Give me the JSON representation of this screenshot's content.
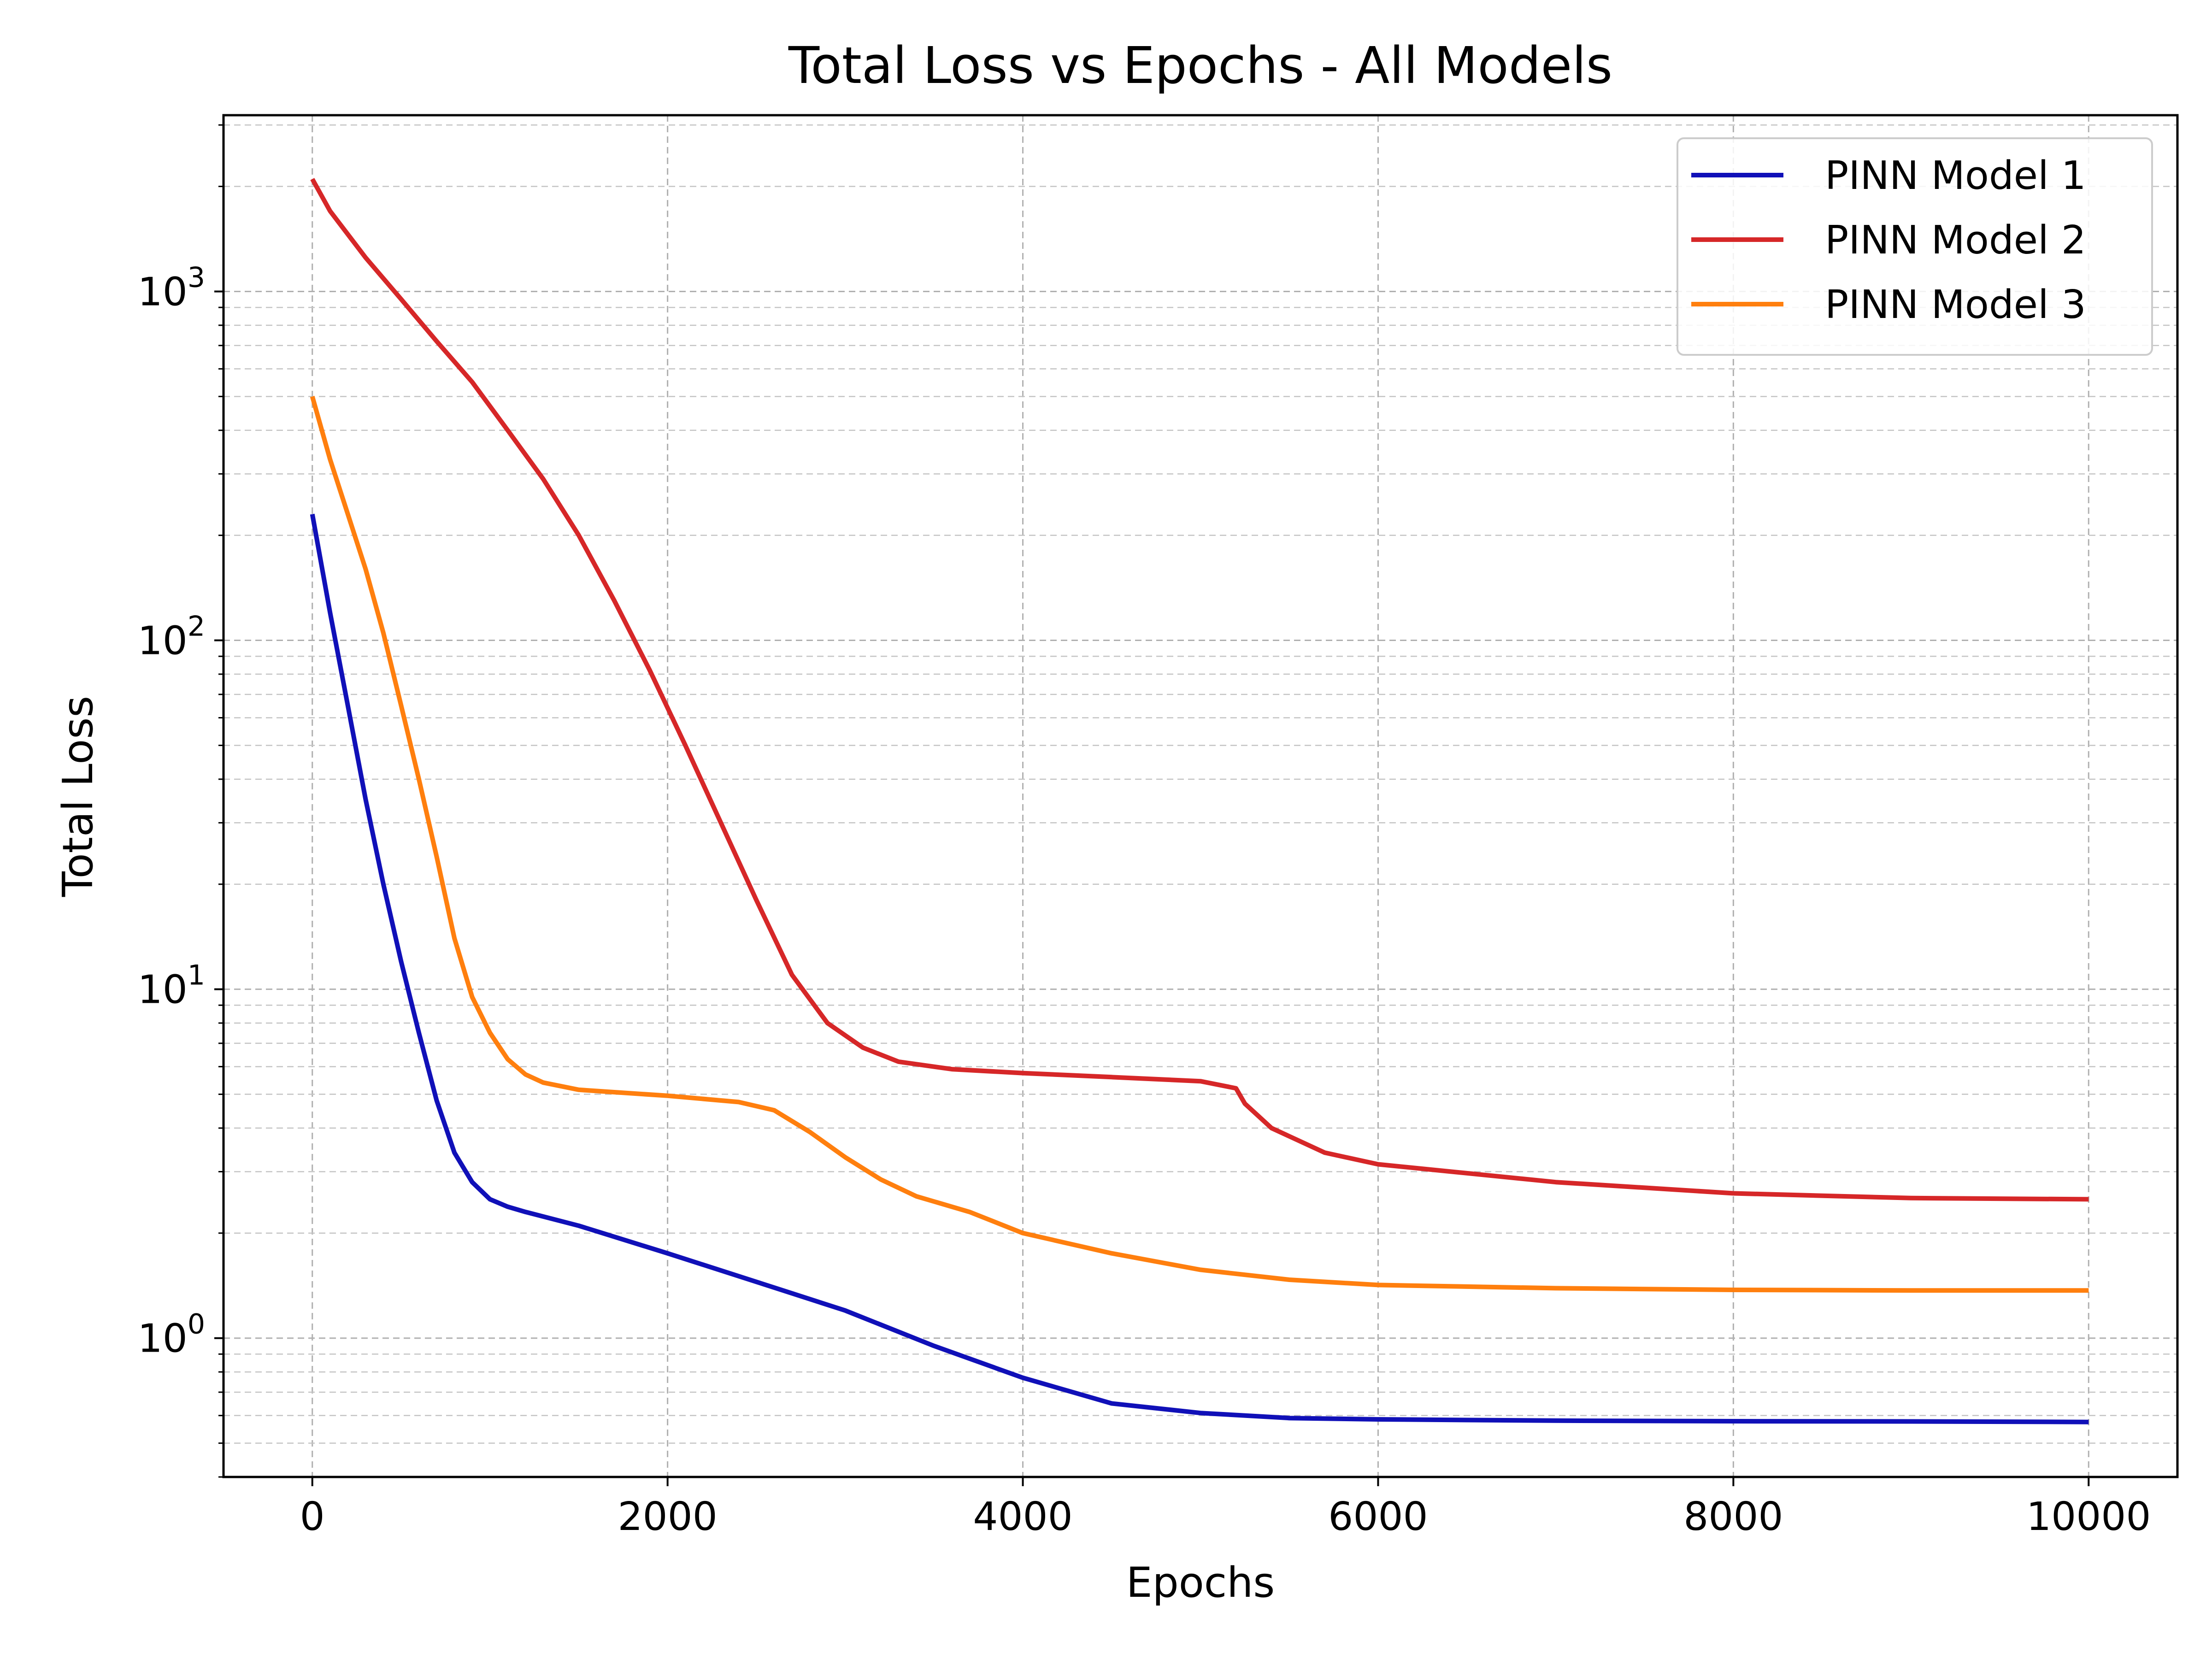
{
  "chart_data": {
    "type": "line",
    "title": "Total Loss vs Epochs - All Models",
    "xlabel": "Epochs",
    "ylabel": "Total Loss",
    "xlim": [
      -500,
      10500
    ],
    "ylim": [
      0.4,
      3200
    ],
    "yscale": "log",
    "grid": true,
    "legend_position": "top-right",
    "x_ticks": [
      0,
      2000,
      4000,
      6000,
      8000,
      10000
    ],
    "x_tick_labels": [
      "0",
      "2000",
      "4000",
      "6000",
      "8000",
      "10000"
    ],
    "y_ticks": [
      {
        "value": 1,
        "base": "10",
        "exp": "0"
      },
      {
        "value": 10,
        "base": "10",
        "exp": "1"
      },
      {
        "value": 100,
        "base": "10",
        "exp": "2"
      },
      {
        "value": 1000,
        "base": "10",
        "exp": "3"
      }
    ],
    "series": [
      {
        "name": "PINN Model 1",
        "color": "#1010b8",
        "points": [
          [
            0,
            230
          ],
          [
            100,
            120
          ],
          [
            200,
            65
          ],
          [
            300,
            35
          ],
          [
            400,
            20
          ],
          [
            500,
            12
          ],
          [
            600,
            7.5
          ],
          [
            700,
            4.8
          ],
          [
            800,
            3.4
          ],
          [
            900,
            2.8
          ],
          [
            1000,
            2.5
          ],
          [
            1100,
            2.38
          ],
          [
            1200,
            2.3
          ],
          [
            1500,
            2.1
          ],
          [
            2000,
            1.75
          ],
          [
            2500,
            1.45
          ],
          [
            3000,
            1.2
          ],
          [
            3500,
            0.95
          ],
          [
            4000,
            0.77
          ],
          [
            4500,
            0.65
          ],
          [
            5000,
            0.61
          ],
          [
            5500,
            0.59
          ],
          [
            6000,
            0.585
          ],
          [
            7000,
            0.58
          ],
          [
            8000,
            0.578
          ],
          [
            9000,
            0.577
          ],
          [
            10000,
            0.575
          ]
        ]
      },
      {
        "name": "PINN Model 2",
        "color": "#d62728",
        "points": [
          [
            0,
            2100
          ],
          [
            100,
            1700
          ],
          [
            300,
            1250
          ],
          [
            500,
            950
          ],
          [
            700,
            720
          ],
          [
            900,
            550
          ],
          [
            1100,
            400
          ],
          [
            1300,
            290
          ],
          [
            1500,
            200
          ],
          [
            1700,
            130
          ],
          [
            1900,
            82
          ],
          [
            2100,
            50
          ],
          [
            2300,
            30
          ],
          [
            2500,
            18
          ],
          [
            2700,
            11
          ],
          [
            2900,
            8
          ],
          [
            3100,
            6.8
          ],
          [
            3300,
            6.2
          ],
          [
            3600,
            5.9
          ],
          [
            4000,
            5.75
          ],
          [
            4500,
            5.6
          ],
          [
            5000,
            5.45
          ],
          [
            5200,
            5.2
          ],
          [
            5250,
            4.7
          ],
          [
            5400,
            4.0
          ],
          [
            5700,
            3.4
          ],
          [
            6000,
            3.15
          ],
          [
            7000,
            2.8
          ],
          [
            8000,
            2.6
          ],
          [
            9000,
            2.52
          ],
          [
            10000,
            2.5
          ]
        ]
      },
      {
        "name": "PINN Model 3",
        "color": "#ff7f0e",
        "points": [
          [
            0,
            500
          ],
          [
            100,
            330
          ],
          [
            200,
            230
          ],
          [
            300,
            160
          ],
          [
            400,
            105
          ],
          [
            500,
            65
          ],
          [
            600,
            40
          ],
          [
            700,
            24
          ],
          [
            800,
            14
          ],
          [
            900,
            9.5
          ],
          [
            1000,
            7.5
          ],
          [
            1100,
            6.3
          ],
          [
            1200,
            5.7
          ],
          [
            1300,
            5.4
          ],
          [
            1500,
            5.15
          ],
          [
            2000,
            4.95
          ],
          [
            2400,
            4.75
          ],
          [
            2600,
            4.5
          ],
          [
            2800,
            3.9
          ],
          [
            3000,
            3.3
          ],
          [
            3200,
            2.85
          ],
          [
            3400,
            2.55
          ],
          [
            3700,
            2.3
          ],
          [
            4000,
            2.0
          ],
          [
            4500,
            1.75
          ],
          [
            5000,
            1.57
          ],
          [
            5500,
            1.47
          ],
          [
            6000,
            1.42
          ],
          [
            7000,
            1.39
          ],
          [
            8000,
            1.375
          ],
          [
            9000,
            1.37
          ],
          [
            10000,
            1.37
          ]
        ]
      }
    ]
  }
}
